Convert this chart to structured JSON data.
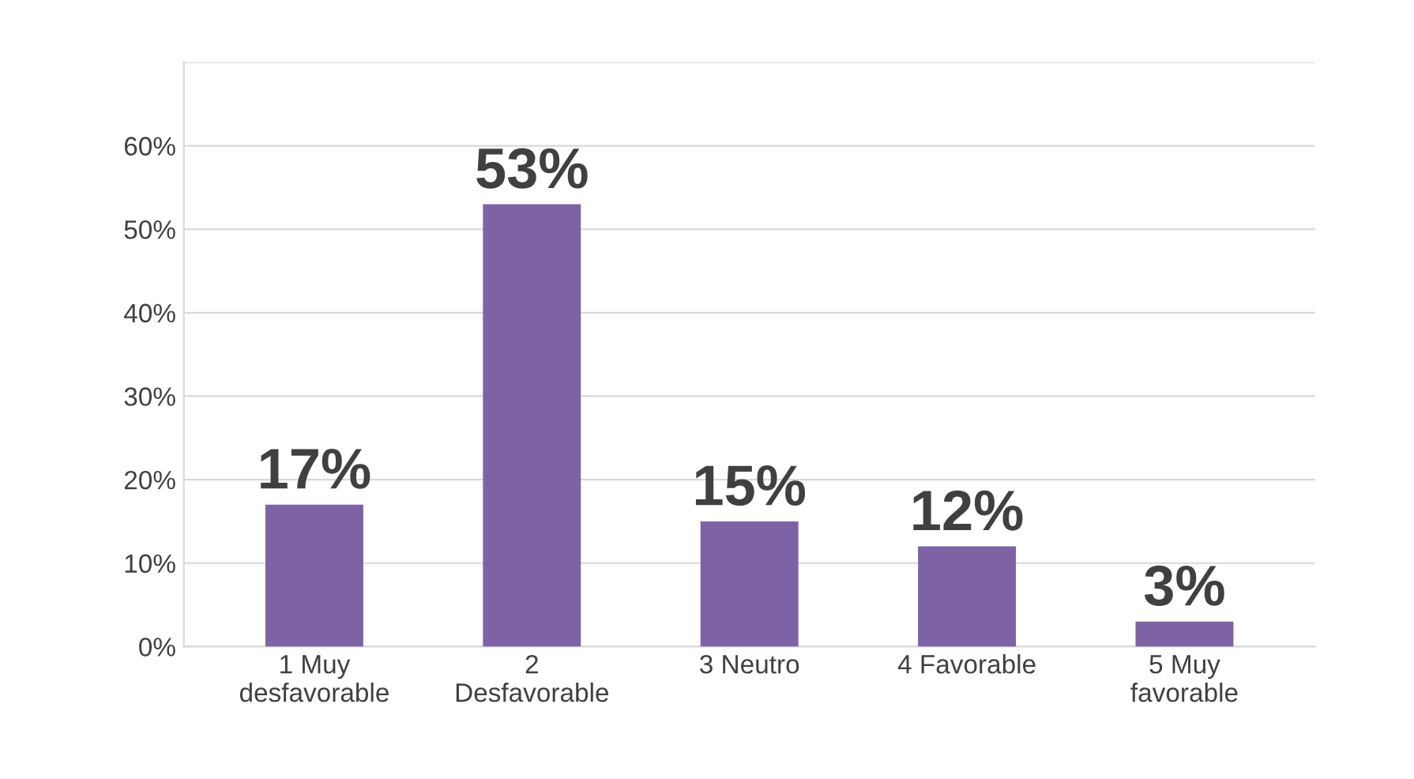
{
  "chart_data": {
    "type": "bar",
    "categories": [
      "1 Muy\ndesfavorable",
      "2\nDesfavorable",
      "3 Neutro",
      "4 Favorable",
      "5 Muy\nfavorable"
    ],
    "values": [
      17,
      53,
      15,
      12,
      3
    ],
    "value_labels": [
      "17%",
      "53%",
      "15%",
      "12%",
      "3%"
    ],
    "color": "#7e62a6",
    "ylim": [
      0,
      70
    ],
    "yticks": [
      {
        "value": 0,
        "label": "0%"
      },
      {
        "value": 10,
        "label": "10%"
      },
      {
        "value": 20,
        "label": "20%"
      },
      {
        "value": 30,
        "label": "30%"
      },
      {
        "value": 40,
        "label": "40%"
      },
      {
        "value": 50,
        "label": "50%"
      },
      {
        "value": 60,
        "label": "60%"
      },
      {
        "value": 70,
        "label": null
      }
    ],
    "grid": "y"
  }
}
